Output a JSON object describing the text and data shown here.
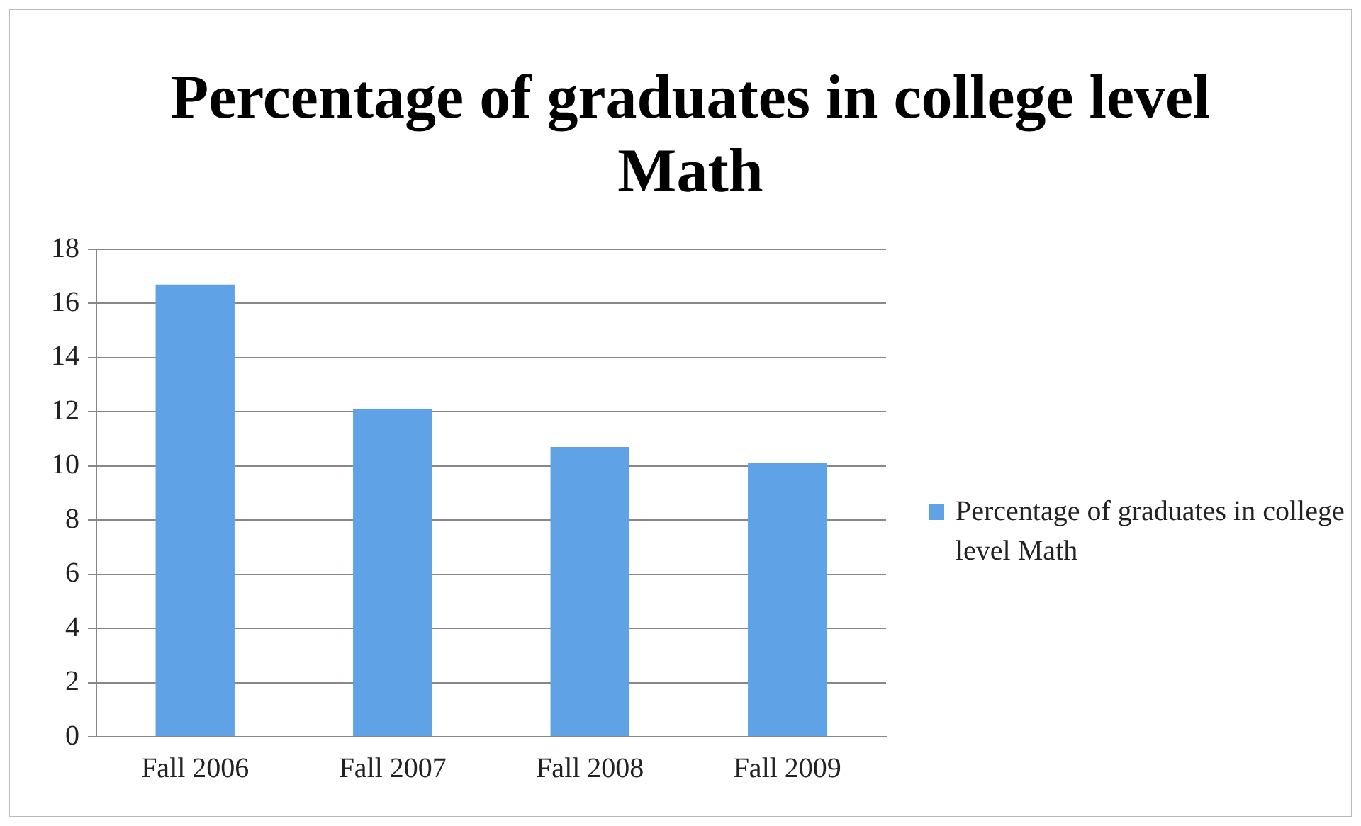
{
  "chart_data": {
    "type": "bar",
    "title": "Percentage of graduates in college level Math",
    "categories": [
      "Fall 2006",
      "Fall 2007",
      "Fall 2008",
      "Fall 2009"
    ],
    "series": [
      {
        "name": "Percentage of graduates in college level Math",
        "color": "#5fa3e6",
        "values": [
          16.7,
          12.1,
          10.7,
          10.1
        ]
      }
    ],
    "ylim": [
      0,
      18
    ],
    "yticks": [
      0,
      2,
      4,
      6,
      8,
      10,
      12,
      14,
      16,
      18
    ],
    "grid": "y",
    "legend": "right"
  }
}
